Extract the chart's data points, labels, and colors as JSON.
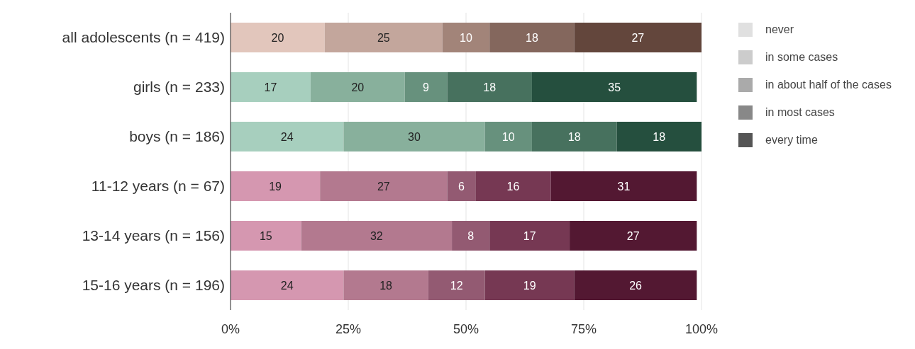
{
  "chart_data": {
    "type": "bar",
    "orientation": "horizontal",
    "stacked": true,
    "data_labels": true,
    "grid": "x",
    "legend": "top right",
    "categories": [
      "all adolescents (n = 419)",
      "girls (n = 233)",
      "boys (n = 186)",
      "11-12 years (n = 67)",
      "13-14 years (n = 156)",
      "15-16 years (n = 196)"
    ],
    "xlim": [
      0,
      100
    ],
    "xticks": [
      {
        "value": 0,
        "label": "0%"
      },
      {
        "value": 25,
        "label": "25%"
      },
      {
        "value": 50,
        "label": "50%"
      },
      {
        "value": 75,
        "label": "75%"
      },
      {
        "value": 100,
        "label": "100%"
      }
    ],
    "series": [
      {
        "name": "never",
        "color": "#e0e0e0",
        "values": [
          20,
          17,
          24,
          19,
          15,
          24
        ],
        "colors": [
          "#e2c6bc",
          "#a7cfbe",
          "#a7cfbe",
          "#d597b0",
          "#d597b0",
          "#d597b0"
        ]
      },
      {
        "name": "in some cases",
        "color": "#cccccc",
        "values": [
          25,
          20,
          30,
          27,
          32,
          18
        ],
        "colors": [
          "#c3a69c",
          "#88b09c",
          "#88b09c",
          "#b3798f",
          "#b3798f",
          "#b3798f"
        ]
      },
      {
        "name": "in about half of the cases",
        "color": "#aaaaaa",
        "values": [
          10,
          9,
          10,
          6,
          8,
          12
        ],
        "colors": [
          "#a28479",
          "#67917d",
          "#67917d",
          "#935a72",
          "#935a72",
          "#935a72"
        ]
      },
      {
        "name": "in most cases",
        "color": "#888888",
        "values": [
          18,
          18,
          18,
          16,
          17,
          19
        ],
        "colors": [
          "#84675d",
          "#47715e",
          "#47715e",
          "#763853",
          "#763853",
          "#763853"
        ]
      },
      {
        "name": "every time",
        "color": "#555555",
        "values": [
          27,
          35,
          18,
          31,
          27,
          26
        ],
        "colors": [
          "#63463c",
          "#254f3e",
          "#254f3e",
          "#531832",
          "#531832",
          "#531832"
        ]
      }
    ]
  }
}
